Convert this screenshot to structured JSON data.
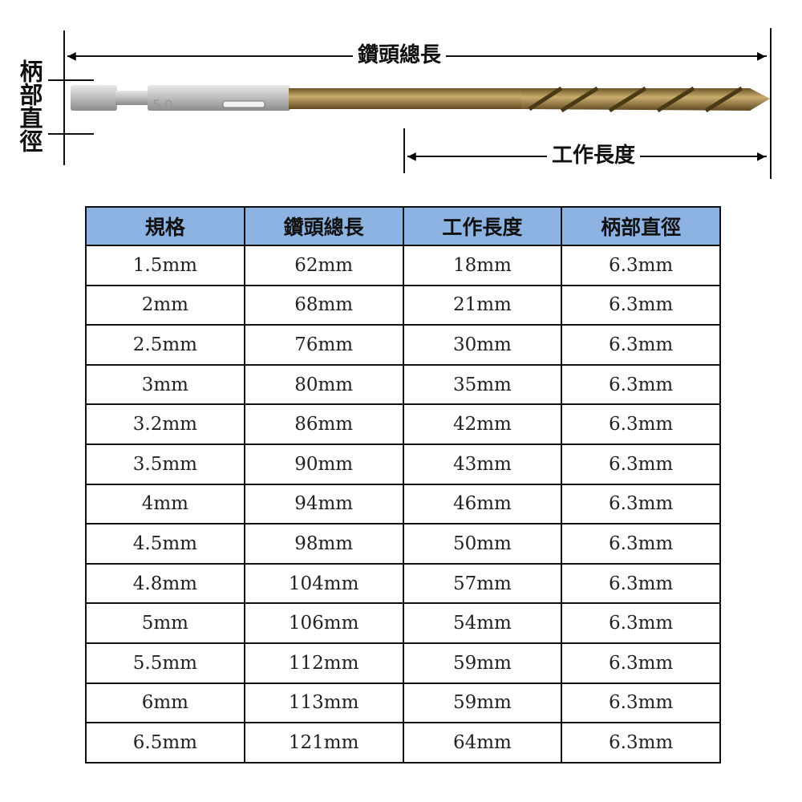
{
  "diagram": {
    "total_length_label": "鑽頭總長",
    "working_length_label": "工作長度",
    "shank_diameter_label": "柄部直徑",
    "bit_marking": "5.0",
    "colors": {
      "shank": "#c9c9c9",
      "shaft": "#a8884a",
      "header": "#8db3e2"
    }
  },
  "table": {
    "headers": [
      "規格",
      "鑽頭總長",
      "工作長度",
      "柄部直徑"
    ],
    "rows": [
      [
        "1.5mm",
        "62mm",
        "18mm",
        "6.3mm"
      ],
      [
        "2mm",
        "68mm",
        "21mm",
        "6.3mm"
      ],
      [
        "2.5mm",
        "76mm",
        "30mm",
        "6.3mm"
      ],
      [
        "3mm",
        "80mm",
        "35mm",
        "6.3mm"
      ],
      [
        "3.2mm",
        "86mm",
        "42mm",
        "6.3mm"
      ],
      [
        "3.5mm",
        "90mm",
        "43mm",
        "6.3mm"
      ],
      [
        "4mm",
        "94mm",
        "46mm",
        "6.3mm"
      ],
      [
        "4.5mm",
        "98mm",
        "50mm",
        "6.3mm"
      ],
      [
        "4.8mm",
        "104mm",
        "57mm",
        "6.3mm"
      ],
      [
        "5mm",
        "106mm",
        "54mm",
        "6.3mm"
      ],
      [
        "5.5mm",
        "112mm",
        "59mm",
        "6.3mm"
      ],
      [
        "6mm",
        "113mm",
        "59mm",
        "6.3mm"
      ],
      [
        "6.5mm",
        "121mm",
        "64mm",
        "6.3mm"
      ]
    ]
  }
}
